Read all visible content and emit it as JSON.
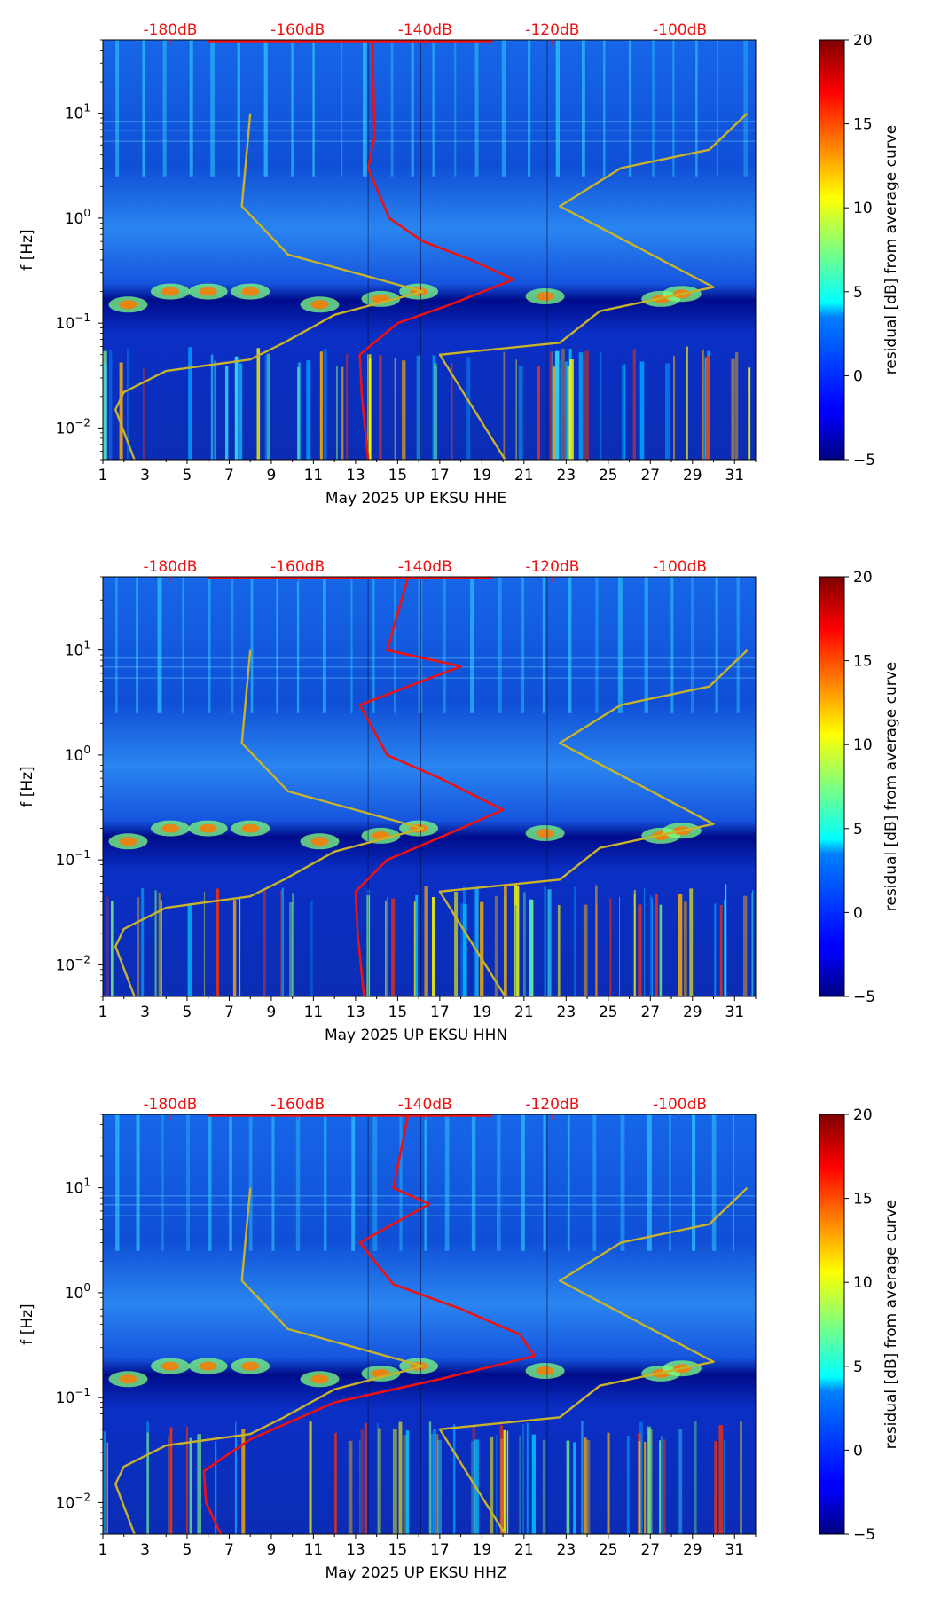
{
  "chart_data": [
    {
      "type": "heatmap",
      "title": "",
      "xlabel": "May 2025 UP EKSU  HHE",
      "ylabel": "f [Hz]",
      "xlim": [
        1,
        32
      ],
      "ylim": [
        0.005,
        50
      ],
      "yscale": "log",
      "x_ticks": [
        "1",
        "3",
        "5",
        "7",
        "9",
        "11",
        "13",
        "15",
        "17",
        "19",
        "21",
        "23",
        "25",
        "27",
        "29",
        "31"
      ],
      "y_ticks": [
        "10^-2",
        "10^-1",
        "10^0",
        "10^1"
      ],
      "top_axis_ticks": [
        "-180dB",
        "-160dB",
        "-140dB",
        "-120dB",
        "-100dB"
      ],
      "colorbar": {
        "label": "residual [dB] from average curve",
        "range": [
          -5,
          20
        ],
        "ticks": [
          "−5",
          "0",
          "5",
          "10",
          "15",
          "20"
        ]
      },
      "series": [
        {
          "color": "#ee1111",
          "values": [
            [
              13.8,
              50
            ],
            [
              13.9,
              6
            ],
            [
              13.6,
              3
            ],
            [
              14.6,
              1
            ],
            [
              16.2,
              0.6
            ],
            [
              18.5,
              0.4
            ],
            [
              20.5,
              0.26
            ],
            [
              17.5,
              0.15
            ],
            [
              15,
              0.1
            ],
            [
              13.2,
              0.05
            ],
            [
              13.3,
              0.02
            ],
            [
              13.6,
              0.005
            ]
          ]
        },
        {
          "color": "#c8b32a",
          "values": [
            [
              8,
              10
            ],
            [
              7.6,
              1.3
            ],
            [
              9.8,
              0.45
            ],
            [
              16.2,
              0.2
            ],
            [
              12,
              0.12
            ],
            [
              9.6,
              0.065
            ],
            [
              8,
              0.045
            ],
            [
              4,
              0.035
            ],
            [
              2,
              0.022
            ],
            [
              1.6,
              0.015
            ],
            [
              2.5,
              0.005
            ]
          ]
        },
        {
          "color": "#c8b32a",
          "values": [
            [
              31.6,
              10
            ],
            [
              29.8,
              4.5
            ],
            [
              25.6,
              3
            ],
            [
              22.7,
              1.3
            ],
            [
              30,
              0.22
            ],
            [
              24.6,
              0.13
            ],
            [
              22.7,
              0.065
            ],
            [
              17,
              0.05
            ],
            [
              20.1,
              0.005
            ]
          ]
        }
      ]
    },
    {
      "type": "heatmap",
      "title": "",
      "xlabel": "May 2025 UP EKSU  HHN",
      "ylabel": "f [Hz]",
      "xlim": [
        1,
        32
      ],
      "ylim": [
        0.005,
        50
      ],
      "yscale": "log",
      "x_ticks": [
        "1",
        "3",
        "5",
        "7",
        "9",
        "11",
        "13",
        "15",
        "17",
        "19",
        "21",
        "23",
        "25",
        "27",
        "29",
        "31"
      ],
      "y_ticks": [
        "10^-2",
        "10^-1",
        "10^0",
        "10^1"
      ],
      "top_axis_ticks": [
        "-180dB",
        "-160dB",
        "-140dB",
        "-120dB",
        "-100dB"
      ],
      "colorbar": {
        "label": "residual [dB] from average curve",
        "range": [
          -5,
          20
        ],
        "ticks": [
          "−5",
          "0",
          "5",
          "10",
          "15",
          "20"
        ]
      },
      "series": [
        {
          "color": "#ee1111",
          "values": [
            [
              15.5,
              50
            ],
            [
              14.5,
              10
            ],
            [
              18,
              7
            ],
            [
              13.2,
              3
            ],
            [
              14.5,
              1
            ],
            [
              17,
              0.6
            ],
            [
              20,
              0.3
            ],
            [
              17.2,
              0.17
            ],
            [
              14.5,
              0.1
            ],
            [
              13,
              0.05
            ],
            [
              13.1,
              0.02
            ],
            [
              13.4,
              0.005
            ]
          ]
        },
        {
          "color": "#c8b32a",
          "values": [
            [
              8,
              10
            ],
            [
              7.6,
              1.3
            ],
            [
              9.8,
              0.45
            ],
            [
              16.2,
              0.2
            ],
            [
              12,
              0.12
            ],
            [
              9.6,
              0.065
            ],
            [
              8,
              0.045
            ],
            [
              4,
              0.035
            ],
            [
              2,
              0.022
            ],
            [
              1.6,
              0.015
            ],
            [
              2.5,
              0.005
            ]
          ]
        },
        {
          "color": "#c8b32a",
          "values": [
            [
              31.6,
              10
            ],
            [
              29.8,
              4.5
            ],
            [
              25.6,
              3
            ],
            [
              22.7,
              1.3
            ],
            [
              30,
              0.22
            ],
            [
              24.6,
              0.13
            ],
            [
              22.7,
              0.065
            ],
            [
              17,
              0.05
            ],
            [
              20.1,
              0.005
            ]
          ]
        }
      ]
    },
    {
      "type": "heatmap",
      "title": "",
      "xlabel": "May 2025 UP EKSU  HHZ",
      "ylabel": "f [Hz]",
      "xlim": [
        1,
        32
      ],
      "ylim": [
        0.005,
        50
      ],
      "yscale": "log",
      "x_ticks": [
        "1",
        "3",
        "5",
        "7",
        "9",
        "11",
        "13",
        "15",
        "17",
        "19",
        "21",
        "23",
        "25",
        "27",
        "29",
        "31"
      ],
      "y_ticks": [
        "10^-2",
        "10^-1",
        "10^0",
        "10^1"
      ],
      "top_axis_ticks": [
        "-180dB",
        "-160dB",
        "-140dB",
        "-120dB",
        "-100dB"
      ],
      "colorbar": {
        "label": "residual [dB] from average curve",
        "range": [
          -5,
          20
        ],
        "ticks": [
          "−5",
          "0",
          "5",
          "10",
          "15",
          "20"
        ]
      },
      "series": [
        {
          "color": "#ee1111",
          "values": [
            [
              15.5,
              50
            ],
            [
              14.8,
              10
            ],
            [
              16.5,
              7
            ],
            [
              13.2,
              3
            ],
            [
              14.8,
              1.2
            ],
            [
              18,
              0.7
            ],
            [
              20.8,
              0.4
            ],
            [
              21.5,
              0.25
            ],
            [
              17,
              0.15
            ],
            [
              12,
              0.09
            ],
            [
              8,
              0.04
            ],
            [
              5.8,
              0.02
            ],
            [
              5.9,
              0.01
            ],
            [
              6.6,
              0.005
            ]
          ]
        },
        {
          "color": "#c8b32a",
          "values": [
            [
              8,
              10
            ],
            [
              7.6,
              1.3
            ],
            [
              9.8,
              0.45
            ],
            [
              16.2,
              0.2
            ],
            [
              12,
              0.12
            ],
            [
              9.6,
              0.065
            ],
            [
              8,
              0.045
            ],
            [
              4,
              0.035
            ],
            [
              2,
              0.022
            ],
            [
              1.6,
              0.015
            ],
            [
              2.5,
              0.005
            ]
          ]
        },
        {
          "color": "#c8b32a",
          "values": [
            [
              31.6,
              10
            ],
            [
              29.8,
              4.5
            ],
            [
              25.6,
              3
            ],
            [
              22.7,
              1.3
            ],
            [
              30,
              0.22
            ],
            [
              24.6,
              0.13
            ],
            [
              22.7,
              0.065
            ],
            [
              17,
              0.05
            ],
            [
              20.1,
              0.005
            ]
          ]
        }
      ]
    }
  ]
}
